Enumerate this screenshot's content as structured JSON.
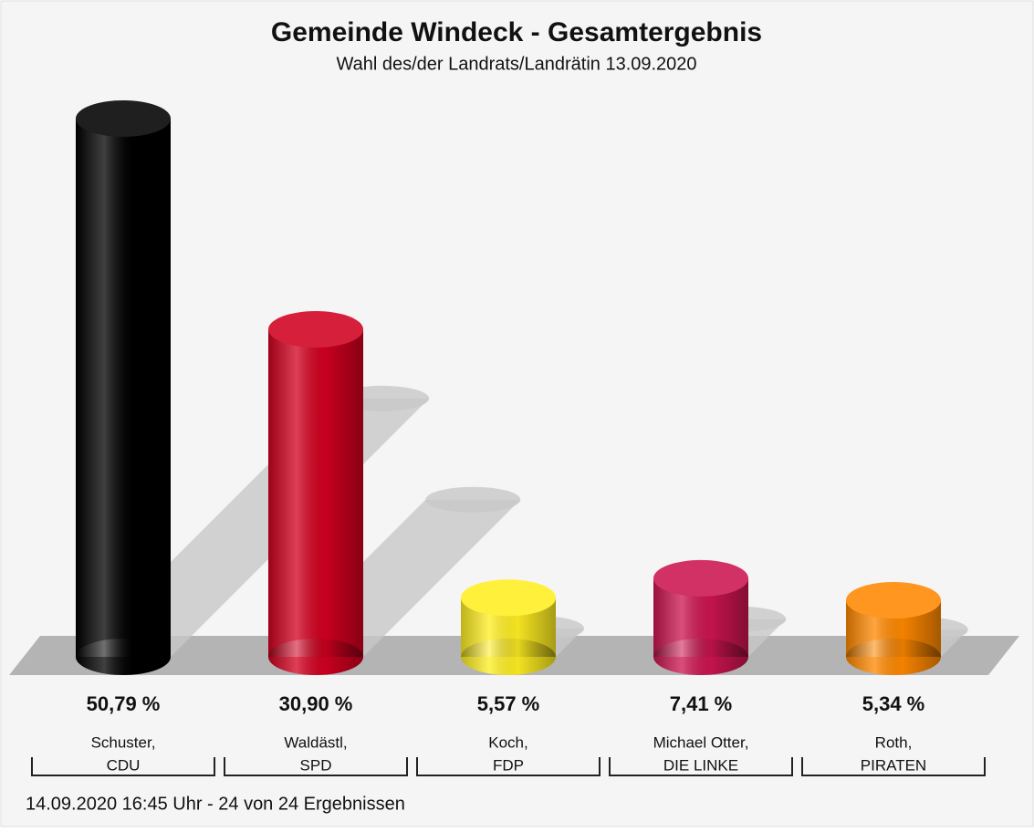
{
  "chart_data": {
    "type": "bar3d",
    "title": "Gemeinde Windeck - Gesamtergebnis",
    "subtitle": "Wahl des/der Landrats/Landrätin 13.09.2020",
    "categories": [
      [
        "Schuster,",
        "CDU"
      ],
      [
        "Waldästl,",
        "SPD"
      ],
      [
        "Koch,",
        "FDP"
      ],
      [
        "Michael Otter,",
        "DIE LINKE"
      ],
      [
        "Roth,",
        "PIRATEN"
      ]
    ],
    "values": [
      50.79,
      30.9,
      5.57,
      7.41,
      5.34
    ],
    "value_labels": [
      "50,79 %",
      "30,90 %",
      "5,57 %",
      "7,41 %",
      "5,34 %"
    ],
    "colors": [
      "#000000",
      "#d1001f",
      "#ffee22",
      "#cc1550",
      "#ff8800"
    ],
    "footer": "14.09.2020 16:45 Uhr - 24 von 24 Ergebnissen"
  }
}
